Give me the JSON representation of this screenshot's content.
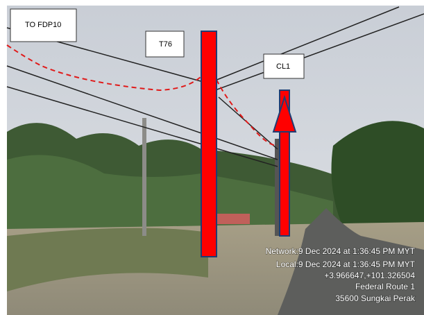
{
  "labels": {
    "fdp": "TO FDP10",
    "pole": "T76",
    "cl": "CL1"
  },
  "stamp": [
    "Network:9 Dec 2024 at 1:36:45 PM MYT",
    "Local:9 Dec 2024 at 1:36:45 PM MYT",
    "+3.966647,+101.326504",
    "Federal Route 1",
    "35600 Sungkai Perak"
  ]
}
